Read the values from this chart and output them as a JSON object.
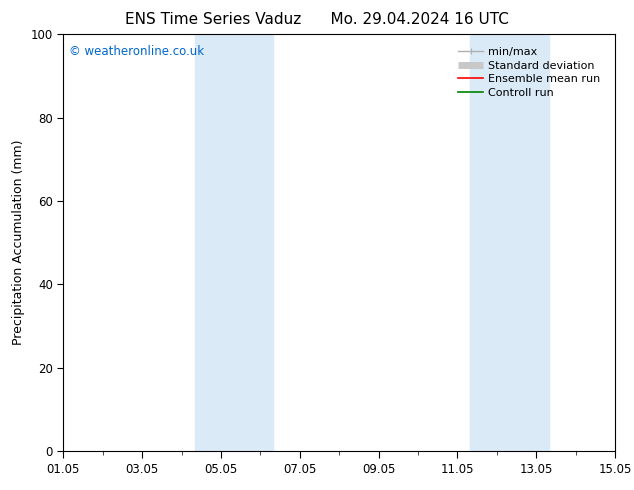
{
  "title_left": "ENS Time Series Vaduz",
  "title_right": "Mo. 29.04.2024 16 UTC",
  "ylabel": "Precipitation Accumulation (mm)",
  "watermark": "© weatheronline.co.uk",
  "ylim": [
    0,
    100
  ],
  "yticks": [
    0,
    20,
    40,
    60,
    80,
    100
  ],
  "xtick_labels": [
    "01.05",
    "03.05",
    "05.05",
    "07.05",
    "09.05",
    "11.05",
    "13.05",
    "15.05"
  ],
  "xtick_positions": [
    0,
    2,
    4,
    6,
    8,
    10,
    12,
    14
  ],
  "x_total_days": 14,
  "shaded_bands": [
    {
      "xmin": 3.33,
      "xmax": 5.33
    },
    {
      "xmin": 10.33,
      "xmax": 12.33
    }
  ],
  "shade_color": "#daeaf7",
  "background_color": "#ffffff",
  "legend_entries": [
    {
      "label": "min/max",
      "color": "#b0b0b0",
      "lw": 1.0
    },
    {
      "label": "Standard deviation",
      "color": "#c8c8c8",
      "lw": 5
    },
    {
      "label": "Ensemble mean run",
      "color": "#ff0000",
      "lw": 1.2
    },
    {
      "label": "Controll run",
      "color": "#008000",
      "lw": 1.2
    }
  ],
  "watermark_color": "#0066cc",
  "title_fontsize": 11,
  "axis_fontsize": 9,
  "tick_fontsize": 8.5,
  "legend_fontsize": 8
}
